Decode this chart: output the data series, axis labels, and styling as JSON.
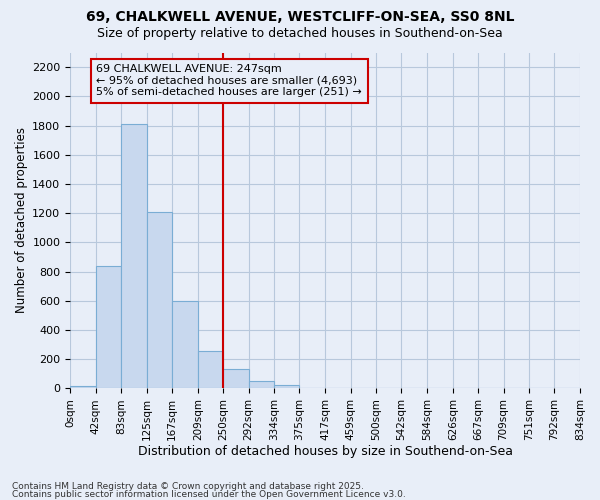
{
  "title1": "69, CHALKWELL AVENUE, WESTCLIFF-ON-SEA, SS0 8NL",
  "title2": "Size of property relative to detached houses in Southend-on-Sea",
  "xlabel": "Distribution of detached houses by size in Southend-on-Sea",
  "ylabel": "Number of detached properties",
  "bin_edges": [
    0,
    42,
    83,
    125,
    167,
    209,
    250,
    292,
    334,
    375,
    417,
    459,
    500,
    542,
    584,
    626,
    667,
    709,
    751,
    792,
    834
  ],
  "bar_heights": [
    20,
    840,
    1810,
    1210,
    600,
    255,
    130,
    50,
    25,
    0,
    0,
    0,
    0,
    0,
    0,
    0,
    0,
    0,
    0,
    0
  ],
  "bar_color": "#c8d8ee",
  "bar_edgecolor": "#7aadd4",
  "grid_color": "#b8c8dc",
  "bg_color": "#e8eef8",
  "vline_x": 250,
  "vline_color": "#cc0000",
  "ylim": [
    0,
    2300
  ],
  "yticks": [
    0,
    200,
    400,
    600,
    800,
    1000,
    1200,
    1400,
    1600,
    1800,
    2000,
    2200
  ],
  "annotation_lines": [
    "69 CHALKWELL AVENUE: 247sqm",
    "← 95% of detached houses are smaller (4,693)",
    "5% of semi-detached houses are larger (251) →"
  ],
  "annotation_box_color": "#cc0000",
  "footnote1": "Contains HM Land Registry data © Crown copyright and database right 2025.",
  "footnote2": "Contains public sector information licensed under the Open Government Licence v3.0."
}
